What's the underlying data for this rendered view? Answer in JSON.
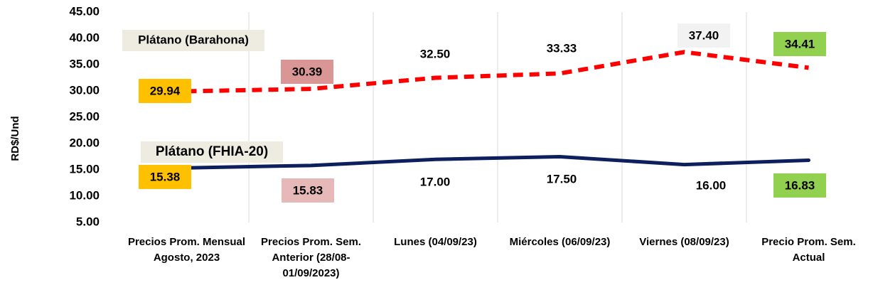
{
  "chart_data": {
    "type": "line",
    "y_label": "RD$/Und",
    "categories": [
      "Precios Prom. Mensual Agosto, 2023",
      "Precios Prom. Sem. Anterior (28/08-01/09/2023)",
      "Lunes  (04/09/23)",
      "Miércoles (06/09/23)",
      "Viernes  (08/09/23)",
      "Precio Prom. Sem. Actual"
    ],
    "series": [
      {
        "name": "Plátano (Barahona)",
        "color": "#ff0000",
        "dash": true,
        "values": [
          29.94,
          30.39,
          32.5,
          33.33,
          37.4,
          34.41
        ],
        "value_labels": [
          "29.94",
          "30.39",
          "32.50",
          "33.33",
          "37.40",
          "34.41"
        ],
        "label_colors": [
          "#ffc000",
          "#d99694",
          "#ffffff",
          "#ffffff",
          "#f2f2f2",
          "#92d050"
        ]
      },
      {
        "name": "Plátano (FHIA-20)",
        "color": "#0d1f5c",
        "dash": false,
        "values": [
          15.38,
          15.83,
          17,
          17.5,
          16,
          16.83
        ],
        "value_labels": [
          "15.38",
          "15.83",
          "17.00",
          "17.50",
          "16.00",
          "16.83"
        ],
        "label_colors": [
          "#ffc000",
          "#e6b8b7",
          "#ffffff",
          "#ffffff",
          "#ffffff",
          "#92d050"
        ]
      }
    ],
    "ylim": [
      5,
      45
    ],
    "yticks": [
      {
        "value": 5,
        "label": "5.00"
      },
      {
        "value": 10,
        "label": "10.00"
      },
      {
        "value": 15,
        "label": "15.00"
      },
      {
        "value": 20,
        "label": "20.00"
      },
      {
        "value": 25,
        "label": "25.00"
      },
      {
        "value": 30,
        "label": "30.00"
      },
      {
        "value": 35,
        "label": "35.00"
      },
      {
        "value": 40,
        "label": "40.00"
      },
      {
        "value": 45,
        "label": "45.00"
      }
    ],
    "grid": true
  }
}
